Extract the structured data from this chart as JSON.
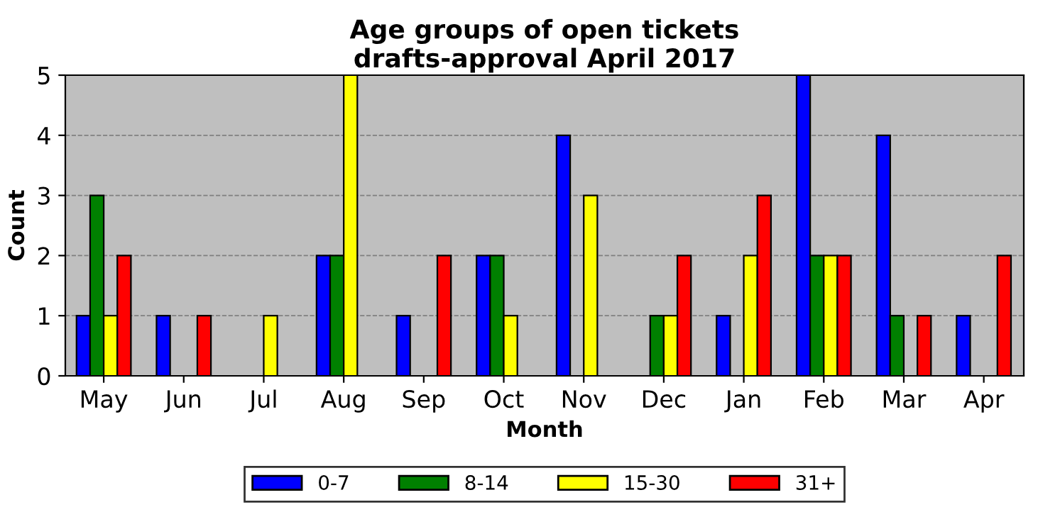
{
  "chart_data": {
    "type": "bar",
    "title": "Age groups of open tickets\ndrafts-approval April 2017",
    "xlabel": "Month",
    "ylabel": "Count",
    "categories": [
      "May",
      "Jun",
      "Jul",
      "Aug",
      "Sep",
      "Oct",
      "Nov",
      "Dec",
      "Jan",
      "Feb",
      "Mar",
      "Apr"
    ],
    "series": [
      {
        "name": "0-7",
        "color": "#0000ff",
        "values": [
          1,
          1,
          0,
          2,
          1,
          2,
          4,
          0,
          1,
          5,
          4,
          1
        ]
      },
      {
        "name": "8-14",
        "color": "#008000",
        "values": [
          3,
          0,
          0,
          2,
          0,
          2,
          0,
          1,
          0,
          2,
          1,
          0
        ]
      },
      {
        "name": "15-30",
        "color": "#ffff00",
        "values": [
          1,
          0,
          1,
          5,
          0,
          1,
          3,
          1,
          2,
          2,
          0,
          0
        ]
      },
      {
        "name": "31+",
        "color": "#ff0000",
        "values": [
          2,
          1,
          0,
          0,
          2,
          0,
          0,
          2,
          3,
          2,
          1,
          2
        ]
      }
    ],
    "ylim": [
      0,
      5
    ],
    "yticks": [
      0,
      1,
      2,
      3,
      4,
      5
    ],
    "grid": "y",
    "legend": "bottom"
  }
}
